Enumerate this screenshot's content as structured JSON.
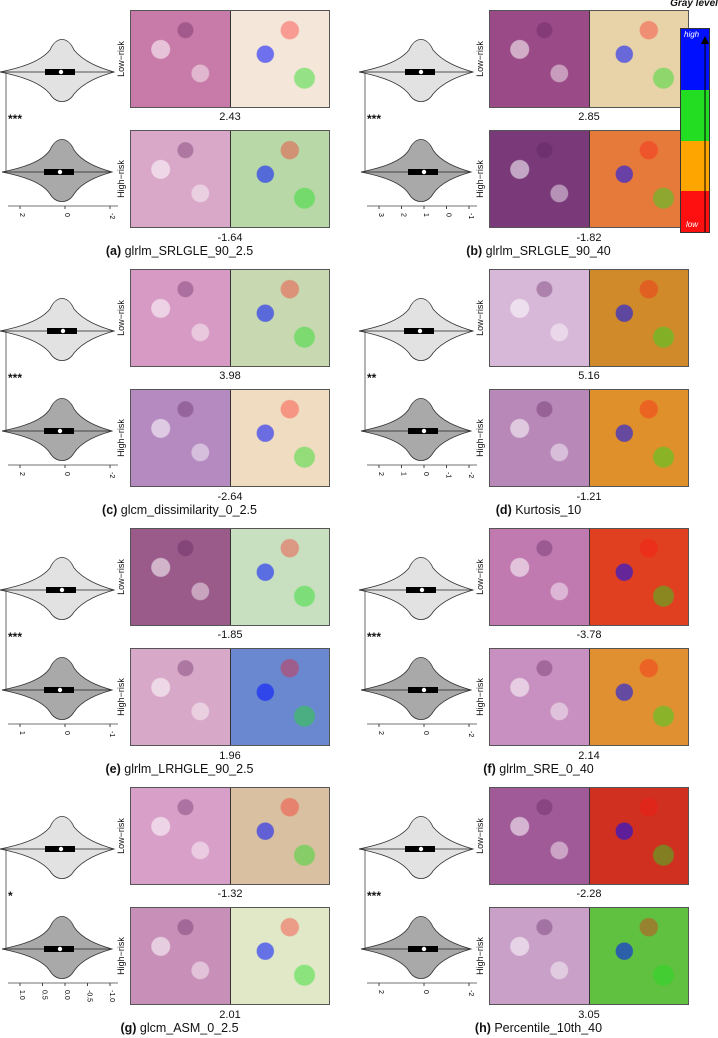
{
  "legend": {
    "title": "Gray level",
    "high_label": "high",
    "low_label": "low",
    "colors": [
      "#0010ff",
      "#22dd22",
      "#ffa500",
      "#ff1010"
    ]
  },
  "row_labels": {
    "low": "Low−risk",
    "high": "High−risk"
  },
  "panels": [
    {
      "letter": "(a)",
      "name": "glrlm_SRLGLE_90_2.5",
      "stars": "***",
      "low_value": "2.43",
      "high_value": "-1.64",
      "ticks": [
        "2",
        "0",
        "-2"
      ],
      "tissue_low": "#c87aa8",
      "tissue_high": "#d9a7c8",
      "map_low": "#f4e6d8",
      "map_high": "#b8d8a8"
    },
    {
      "letter": "(b)",
      "name": "glrlm_SRLGLE_90_40",
      "stars": "***",
      "low_value": "2.85",
      "high_value": "-1.82",
      "ticks": [
        "3",
        "2",
        "1",
        "0",
        "-1"
      ],
      "tissue_low": "#9a4a86",
      "tissue_high": "#7a3a7a",
      "map_low": "#e8d2a8",
      "map_high": "#e67a3a"
    },
    {
      "letter": "(c)",
      "name": "glcm_dissimilarity_0_2.5",
      "stars": "***",
      "low_value": "3.98",
      "high_value": "-2.64",
      "ticks": [
        "2",
        "0",
        "-2"
      ],
      "tissue_low": "#d79ac4",
      "tissue_high": "#b58ac0",
      "map_low": "#c8d8b0",
      "map_high": "#f0dcc0"
    },
    {
      "letter": "(d)",
      "name": "Kurtosis_10",
      "stars": "**",
      "low_value": "5.16",
      "high_value": "-1.21",
      "ticks": [
        "2",
        "1",
        "0",
        "-1",
        "-2"
      ],
      "tissue_low": "#d8b8d8",
      "tissue_high": "#b888b8",
      "map_low": "#d08a2a",
      "map_high": "#e0902a"
    },
    {
      "letter": "(e)",
      "name": "glrlm_LRHGLE_90_2.5",
      "stars": "***",
      "low_value": "-1.85",
      "high_value": "1.96",
      "ticks": [
        "1",
        "0",
        "-1"
      ],
      "tissue_low": "#9a5a8a",
      "tissue_high": "#d8a8c8",
      "map_low": "#c8e0c0",
      "map_high": "#6a88d0"
    },
    {
      "letter": "(f)",
      "name": "glrlm_SRE_0_40",
      "stars": "***",
      "low_value": "-3.78",
      "high_value": "2.14",
      "ticks": [
        "2",
        "0",
        "-2"
      ],
      "tissue_low": "#c07ab0",
      "tissue_high": "#c890c0",
      "map_low": "#e04020",
      "map_high": "#e09030"
    },
    {
      "letter": "(g)",
      "name": "glcm_ASM_0_2.5",
      "stars": "*",
      "low_value": "-1.32",
      "high_value": "2.01",
      "ticks": [
        "1.0",
        "0.5",
        "0.0",
        "-0.5",
        "-1.0"
      ],
      "tissue_low": "#d8a0c8",
      "tissue_high": "#c890b8",
      "map_low": "#d8c0a0",
      "map_high": "#e0e8c8"
    },
    {
      "letter": "(h)",
      "name": "Percentile_10th_40",
      "stars": "***",
      "low_value": "-2.28",
      "high_value": "3.05",
      "ticks": [
        "2",
        "0",
        "-2"
      ],
      "tissue_low": "#a05a98",
      "tissue_high": "#c8a0c8",
      "map_low": "#d03020",
      "map_high": "#60c040"
    }
  ]
}
